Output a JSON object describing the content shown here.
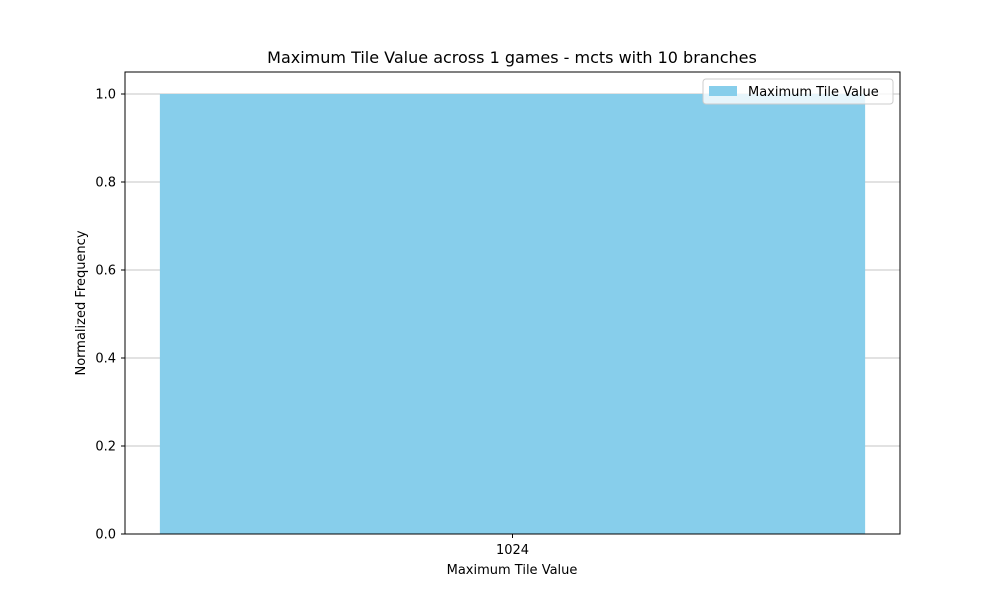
{
  "chart_data": {
    "type": "bar",
    "title": "Maximum Tile Value across 1 games - mcts with 10 branches",
    "xlabel": "Maximum Tile Value",
    "ylabel": "Normalized Frequency",
    "categories": [
      "1024"
    ],
    "series": [
      {
        "name": "Maximum Tile Value",
        "values": [
          1.0
        ],
        "color": "#87CEEB"
      }
    ],
    "ylim": [
      0,
      1.05
    ],
    "yticks": [
      0.0,
      0.2,
      0.4,
      0.6,
      0.8,
      1.0
    ],
    "ytick_labels": [
      "0.0",
      "0.2",
      "0.4",
      "0.6",
      "0.8",
      "1.0"
    ],
    "grid": "y",
    "legend_position": "upper right"
  }
}
